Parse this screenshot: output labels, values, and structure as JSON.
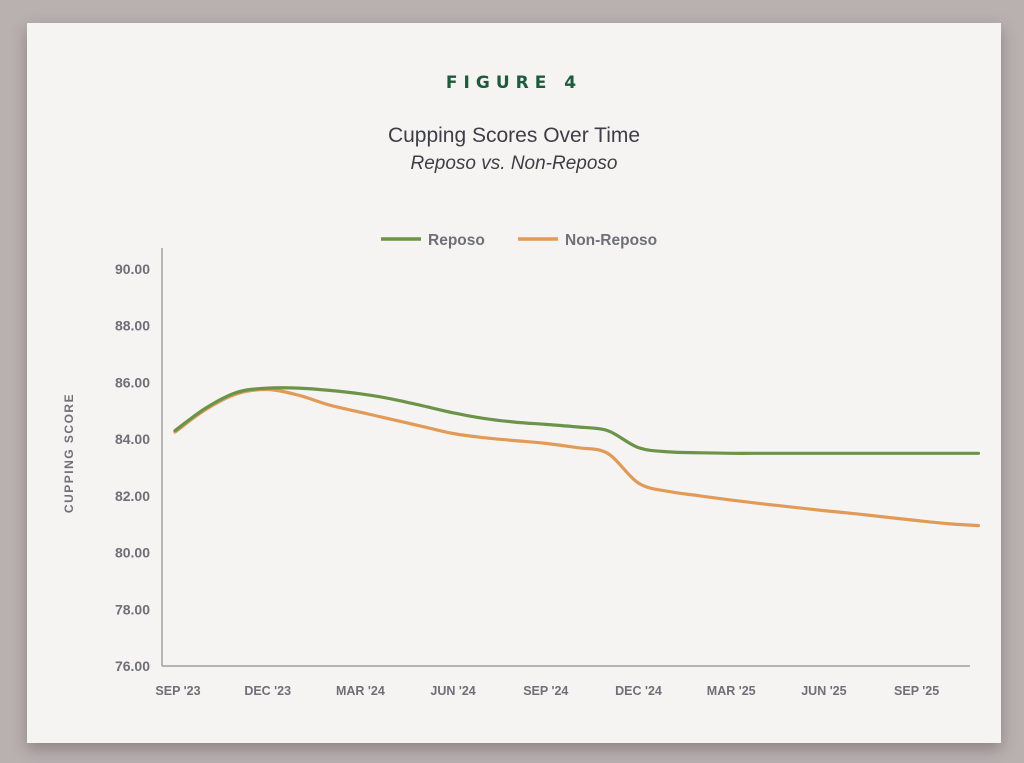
{
  "figure": {
    "label": "FIGURE 4",
    "title": "Cupping Scores Over Time",
    "subtitle": "Reposo vs. Non-Reposo"
  },
  "colors": {
    "reposo": "#6b9449",
    "non_reposo": "#e19a58",
    "axis": "#8d8d94",
    "label_text": "#6f6f78",
    "figure_label": "#1e5a3c"
  },
  "chart_data": {
    "type": "line",
    "title": "Cupping Scores Over Time",
    "subtitle": "Reposo vs. Non-Reposo",
    "xlabel": "",
    "ylabel": "CUPPING SCORE",
    "ylim": [
      76,
      90
    ],
    "yticks": [
      "90.00",
      "88.00",
      "86.00",
      "84.00",
      "82.00",
      "80.00",
      "78.00",
      "76.00"
    ],
    "categories": [
      "SEP '23",
      "DEC '23",
      "MAR '24",
      "JUN '24",
      "SEP '24",
      "DEC '24",
      "MAR '25",
      "JUN '25",
      "SEP '25"
    ],
    "grid": false,
    "legend_position": "top-center",
    "series": [
      {
        "name": "Reposo",
        "points": [
          {
            "month": "2023-09",
            "value": 84.3
          },
          {
            "month": "2023-10",
            "value": 85.1
          },
          {
            "month": "2023-11",
            "value": 85.65
          },
          {
            "month": "2023-12",
            "value": 85.8
          },
          {
            "month": "2024-01",
            "value": 85.8
          },
          {
            "month": "2024-02",
            "value": 85.72
          },
          {
            "month": "2024-03",
            "value": 85.6
          },
          {
            "month": "2024-04",
            "value": 85.42
          },
          {
            "month": "2024-05",
            "value": 85.18
          },
          {
            "month": "2024-06",
            "value": 84.93
          },
          {
            "month": "2024-07",
            "value": 84.73
          },
          {
            "month": "2024-08",
            "value": 84.6
          },
          {
            "month": "2024-09",
            "value": 84.52
          },
          {
            "month": "2024-10",
            "value": 84.43
          },
          {
            "month": "2024-11",
            "value": 84.3
          },
          {
            "month": "2024-12",
            "value": 83.7
          },
          {
            "month": "2025-01",
            "value": 83.55
          },
          {
            "month": "2025-02",
            "value": 83.52
          },
          {
            "month": "2025-03",
            "value": 83.5
          },
          {
            "month": "2025-04",
            "value": 83.5
          },
          {
            "month": "2025-05",
            "value": 83.5
          },
          {
            "month": "2025-06",
            "value": 83.5
          },
          {
            "month": "2025-07",
            "value": 83.5
          },
          {
            "month": "2025-08",
            "value": 83.5
          },
          {
            "month": "2025-09",
            "value": 83.5
          },
          {
            "month": "2025-10",
            "value": 83.5
          },
          {
            "month": "2025-11",
            "value": 83.5
          }
        ]
      },
      {
        "name": "Non-Reposo",
        "points": [
          {
            "month": "2023-09",
            "value": 84.25
          },
          {
            "month": "2023-10",
            "value": 85.05
          },
          {
            "month": "2023-11",
            "value": 85.6
          },
          {
            "month": "2023-12",
            "value": 85.75
          },
          {
            "month": "2024-01",
            "value": 85.55
          },
          {
            "month": "2024-02",
            "value": 85.2
          },
          {
            "month": "2024-03",
            "value": 84.95
          },
          {
            "month": "2024-04",
            "value": 84.7
          },
          {
            "month": "2024-05",
            "value": 84.45
          },
          {
            "month": "2024-06",
            "value": 84.2
          },
          {
            "month": "2024-07",
            "value": 84.05
          },
          {
            "month": "2024-08",
            "value": 83.95
          },
          {
            "month": "2024-09",
            "value": 83.85
          },
          {
            "month": "2024-10",
            "value": 83.7
          },
          {
            "month": "2024-11",
            "value": 83.5
          },
          {
            "month": "2024-12",
            "value": 82.45
          },
          {
            "month": "2025-01",
            "value": 82.15
          },
          {
            "month": "2025-02",
            "value": 82.0
          },
          {
            "month": "2025-03",
            "value": 81.85
          },
          {
            "month": "2025-04",
            "value": 81.72
          },
          {
            "month": "2025-05",
            "value": 81.6
          },
          {
            "month": "2025-06",
            "value": 81.48
          },
          {
            "month": "2025-07",
            "value": 81.37
          },
          {
            "month": "2025-08",
            "value": 81.25
          },
          {
            "month": "2025-09",
            "value": 81.13
          },
          {
            "month": "2025-10",
            "value": 81.02
          },
          {
            "month": "2025-11",
            "value": 80.95
          }
        ]
      }
    ]
  }
}
